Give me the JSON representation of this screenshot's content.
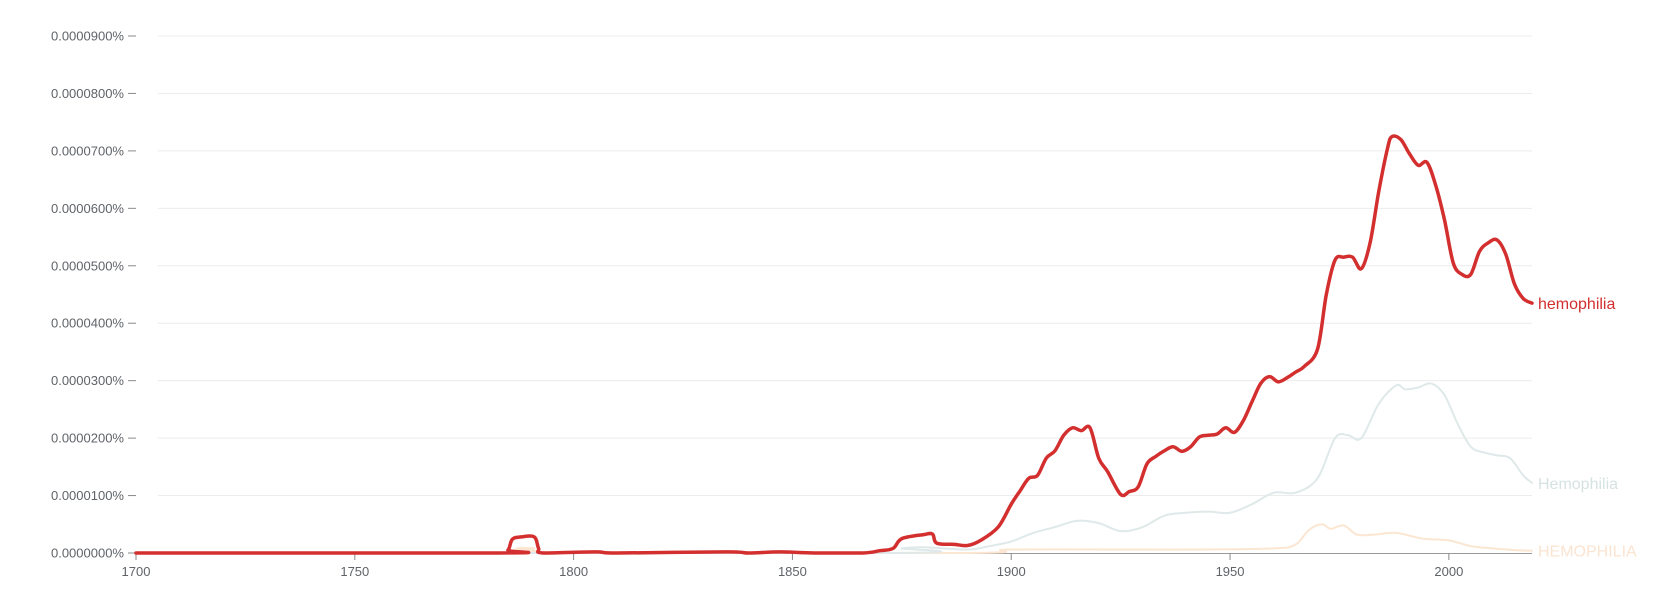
{
  "chart_data": {
    "type": "line",
    "title": "",
    "xlabel": "",
    "ylabel": "",
    "xlim": [
      1700,
      2019
    ],
    "ylim": [
      0,
      9e-05
    ],
    "grid": true,
    "legend": "end-of-line labels",
    "x_ticks": [
      {
        "value": 1700,
        "label": "1700"
      },
      {
        "value": 1750,
        "label": "1750"
      },
      {
        "value": 1800,
        "label": "1800"
      },
      {
        "value": 1850,
        "label": "1850"
      },
      {
        "value": 1900,
        "label": "1900"
      },
      {
        "value": 1950,
        "label": "1950"
      },
      {
        "value": 2000,
        "label": "2000"
      }
    ],
    "y_ticks": [
      {
        "value": 0,
        "label": "0.0000000%"
      },
      {
        "value": 1e-05,
        "label": "0.0000100%"
      },
      {
        "value": 2e-05,
        "label": "0.0000200%"
      },
      {
        "value": 3e-05,
        "label": "0.0000300%"
      },
      {
        "value": 4e-05,
        "label": "0.0000400%"
      },
      {
        "value": 5e-05,
        "label": "0.0000500%"
      },
      {
        "value": 6e-05,
        "label": "0.0000600%"
      },
      {
        "value": 7e-05,
        "label": "0.0000700%"
      },
      {
        "value": 8e-05,
        "label": "0.0000800%"
      },
      {
        "value": 9e-05,
        "label": "0.0000900%"
      }
    ],
    "series": [
      {
        "name": "hemophilia",
        "color": "#d32f2f",
        "label_color": "#d32f2f",
        "points": [
          [
            1700,
            0
          ],
          [
            1783,
            0
          ],
          [
            1785,
            5e-07
          ],
          [
            1786,
            2.4e-06
          ],
          [
            1788,
            2.8e-06
          ],
          [
            1791,
            2.8e-06
          ],
          [
            1792,
            8e-07
          ],
          [
            1793,
            0
          ],
          [
            1805,
            2e-07
          ],
          [
            1810,
            0
          ],
          [
            1835,
            2e-07
          ],
          [
            1840,
            0
          ],
          [
            1847,
            2e-07
          ],
          [
            1855,
            0
          ],
          [
            1866,
            0
          ],
          [
            1870,
            4e-07
          ],
          [
            1873,
            8e-07
          ],
          [
            1875,
            2.5e-06
          ],
          [
            1880,
            3.2e-06
          ],
          [
            1882,
            3.3e-06
          ],
          [
            1883,
            1.7e-06
          ],
          [
            1887,
            1.5e-06
          ],
          [
            1890,
            1.3e-06
          ],
          [
            1893,
            2.2e-06
          ],
          [
            1897,
            4.5e-06
          ],
          [
            1900,
            8.5e-06
          ],
          [
            1902,
            1.08e-05
          ],
          [
            1904,
            1.3e-05
          ],
          [
            1906,
            1.35e-05
          ],
          [
            1908,
            1.65e-05
          ],
          [
            1910,
            1.78e-05
          ],
          [
            1912,
            2.05e-05
          ],
          [
            1914,
            2.18e-05
          ],
          [
            1916,
            2.13e-05
          ],
          [
            1918,
            2.18e-05
          ],
          [
            1920,
            1.65e-05
          ],
          [
            1922,
            1.42e-05
          ],
          [
            1925,
            1.02e-05
          ],
          [
            1927,
            1.07e-05
          ],
          [
            1929,
            1.15e-05
          ],
          [
            1931,
            1.55e-05
          ],
          [
            1933,
            1.68e-05
          ],
          [
            1935,
            1.78e-05
          ],
          [
            1937,
            1.85e-05
          ],
          [
            1939,
            1.77e-05
          ],
          [
            1941,
            1.85e-05
          ],
          [
            1943,
            2.02e-05
          ],
          [
            1945,
            2.05e-05
          ],
          [
            1947,
            2.07e-05
          ],
          [
            1949,
            2.18e-05
          ],
          [
            1951,
            2.1e-05
          ],
          [
            1953,
            2.3e-05
          ],
          [
            1955,
            2.63e-05
          ],
          [
            1957,
            2.95e-05
          ],
          [
            1959,
            3.07e-05
          ],
          [
            1961,
            2.98e-05
          ],
          [
            1963,
            3.05e-05
          ],
          [
            1965,
            3.15e-05
          ],
          [
            1967,
            3.25e-05
          ],
          [
            1970,
            3.55e-05
          ],
          [
            1972,
            4.5e-05
          ],
          [
            1974,
            5.1e-05
          ],
          [
            1976,
            5.15e-05
          ],
          [
            1978,
            5.15e-05
          ],
          [
            1980,
            4.95e-05
          ],
          [
            1982,
            5.4e-05
          ],
          [
            1984,
            6.3e-05
          ],
          [
            1986,
            7.05e-05
          ],
          [
            1987,
            7.25e-05
          ],
          [
            1989,
            7.2e-05
          ],
          [
            1991,
            6.95e-05
          ],
          [
            1993,
            6.75e-05
          ],
          [
            1995,
            6.8e-05
          ],
          [
            1997,
            6.4e-05
          ],
          [
            1999,
            5.8e-05
          ],
          [
            2001,
            5.05e-05
          ],
          [
            2003,
            4.85e-05
          ],
          [
            2005,
            4.85e-05
          ],
          [
            2007,
            5.25e-05
          ],
          [
            2009,
            5.4e-05
          ],
          [
            2011,
            5.45e-05
          ],
          [
            2013,
            5.2e-05
          ],
          [
            2015,
            4.68e-05
          ],
          [
            2017,
            4.43e-05
          ],
          [
            2019,
            4.35e-05
          ]
        ]
      },
      {
        "name": "Hemophilia",
        "color": "#dfe9e9",
        "label_color": "#d6e2e2",
        "points": [
          [
            1700,
            0
          ],
          [
            1870,
            0
          ],
          [
            1875,
            8e-07
          ],
          [
            1880,
            1e-06
          ],
          [
            1890,
            6e-07
          ],
          [
            1895,
            1.2e-06
          ],
          [
            1900,
            2e-06
          ],
          [
            1905,
            3.5e-06
          ],
          [
            1910,
            4.5e-06
          ],
          [
            1915,
            5.6e-06
          ],
          [
            1920,
            5.2e-06
          ],
          [
            1925,
            3.8e-06
          ],
          [
            1930,
            4.5e-06
          ],
          [
            1935,
            6.5e-06
          ],
          [
            1940,
            7e-06
          ],
          [
            1945,
            7.2e-06
          ],
          [
            1950,
            7e-06
          ],
          [
            1955,
            8.5e-06
          ],
          [
            1960,
            1.05e-05
          ],
          [
            1965,
            1.05e-05
          ],
          [
            1970,
            1.3e-05
          ],
          [
            1974,
            2e-05
          ],
          [
            1977,
            2.05e-05
          ],
          [
            1980,
            2e-05
          ],
          [
            1984,
            2.6e-05
          ],
          [
            1988,
            2.92e-05
          ],
          [
            1990,
            2.85e-05
          ],
          [
            1993,
            2.88e-05
          ],
          [
            1996,
            2.95e-05
          ],
          [
            1999,
            2.75e-05
          ],
          [
            2002,
            2.25e-05
          ],
          [
            2005,
            1.85e-05
          ],
          [
            2008,
            1.75e-05
          ],
          [
            2011,
            1.7e-05
          ],
          [
            2014,
            1.65e-05
          ],
          [
            2017,
            1.35e-05
          ],
          [
            2019,
            1.22e-05
          ]
        ]
      },
      {
        "name": "HEMOPHILIA",
        "color": "#fbe6d2",
        "label_color": "#fbe4d0",
        "points": [
          [
            1700,
            0
          ],
          [
            1785,
            0
          ],
          [
            1787,
            8e-07
          ],
          [
            1791,
            8e-07
          ],
          [
            1793,
            0
          ],
          [
            1890,
            0
          ],
          [
            1900,
            6e-07
          ],
          [
            1940,
            6e-07
          ],
          [
            1960,
            8e-07
          ],
          [
            1965,
            1.5e-06
          ],
          [
            1968,
            4e-06
          ],
          [
            1971,
            5e-06
          ],
          [
            1973,
            4.2e-06
          ],
          [
            1976,
            4.8e-06
          ],
          [
            1979,
            3.2e-06
          ],
          [
            1983,
            3.2e-06
          ],
          [
            1988,
            3.5e-06
          ],
          [
            1994,
            2.5e-06
          ],
          [
            2000,
            2.2e-06
          ],
          [
            2005,
            1.2e-06
          ],
          [
            2010,
            8e-07
          ],
          [
            2015,
            5e-07
          ],
          [
            2019,
            4e-07
          ]
        ]
      }
    ]
  }
}
